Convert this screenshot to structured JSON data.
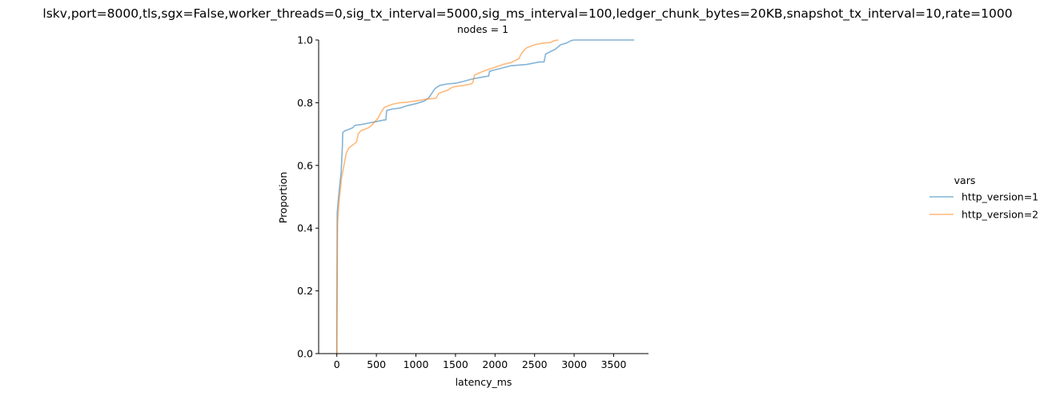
{
  "figure": {
    "suptitle": "lskv,port=8000,tls,sgx=False,worker_threads=0,sig_tx_interval=5000,sig_ms_interval=100,ledger_chunk_bytes=20KB,snapshot_tx_interval=10,rate=1000"
  },
  "chart_data": {
    "type": "line",
    "subtype": "ecdf",
    "title": "nodes = 1",
    "xlabel": "latency_ms",
    "ylabel": "Proportion",
    "xlim": [
      -230,
      3940
    ],
    "ylim": [
      0.0,
      1.0
    ],
    "xticks": [
      0,
      500,
      1000,
      1500,
      2000,
      2500,
      3000,
      3500
    ],
    "xtick_labels": [
      "0",
      "500",
      "1000",
      "1500",
      "2000",
      "2500",
      "3000",
      "3500"
    ],
    "yticks": [
      0.0,
      0.2,
      0.4,
      0.6,
      0.8,
      1.0
    ],
    "ytick_labels": [
      "0.0",
      "0.2",
      "0.4",
      "0.6",
      "0.8",
      "1.0"
    ],
    "grid": false,
    "legend": {
      "title": "vars",
      "position": "right"
    },
    "series": [
      {
        "name": "http_version=1",
        "color": "#1f77b4",
        "opacity": 0.55,
        "points": [
          [
            0,
            0.0
          ],
          [
            0,
            0.05
          ],
          [
            3,
            0.25
          ],
          [
            5,
            0.45
          ],
          [
            15,
            0.48
          ],
          [
            30,
            0.52
          ],
          [
            55,
            0.58
          ],
          [
            70,
            0.66
          ],
          [
            75,
            0.705
          ],
          [
            100,
            0.71
          ],
          [
            150,
            0.715
          ],
          [
            200,
            0.72
          ],
          [
            230,
            0.728
          ],
          [
            300,
            0.73
          ],
          [
            400,
            0.735
          ],
          [
            500,
            0.74
          ],
          [
            600,
            0.745
          ],
          [
            620,
            0.745
          ],
          [
            630,
            0.775
          ],
          [
            700,
            0.78
          ],
          [
            800,
            0.783
          ],
          [
            880,
            0.79
          ],
          [
            1000,
            0.797
          ],
          [
            1100,
            0.805
          ],
          [
            1160,
            0.815
          ],
          [
            1200,
            0.83
          ],
          [
            1240,
            0.845
          ],
          [
            1300,
            0.855
          ],
          [
            1400,
            0.86
          ],
          [
            1500,
            0.862
          ],
          [
            1600,
            0.868
          ],
          [
            1700,
            0.875
          ],
          [
            1800,
            0.88
          ],
          [
            1920,
            0.885
          ],
          [
            1930,
            0.9
          ],
          [
            2000,
            0.905
          ],
          [
            2080,
            0.91
          ],
          [
            2200,
            0.918
          ],
          [
            2400,
            0.922
          ],
          [
            2560,
            0.93
          ],
          [
            2620,
            0.93
          ],
          [
            2640,
            0.955
          ],
          [
            2700,
            0.963
          ],
          [
            2760,
            0.97
          ],
          [
            2830,
            0.985
          ],
          [
            2900,
            0.99
          ],
          [
            2960,
            0.998
          ],
          [
            3000,
            1.0
          ],
          [
            3760,
            1.0
          ]
        ]
      },
      {
        "name": "http_version=2",
        "color": "#ff7f0e",
        "opacity": 0.55,
        "points": [
          [
            0,
            0.0
          ],
          [
            0,
            0.08
          ],
          [
            5,
            0.3
          ],
          [
            10,
            0.42
          ],
          [
            30,
            0.49
          ],
          [
            60,
            0.56
          ],
          [
            90,
            0.6
          ],
          [
            120,
            0.64
          ],
          [
            150,
            0.655
          ],
          [
            200,
            0.665
          ],
          [
            250,
            0.675
          ],
          [
            270,
            0.7
          ],
          [
            300,
            0.71
          ],
          [
            400,
            0.72
          ],
          [
            450,
            0.73
          ],
          [
            480,
            0.74
          ],
          [
            520,
            0.75
          ],
          [
            560,
            0.77
          ],
          [
            600,
            0.785
          ],
          [
            700,
            0.795
          ],
          [
            800,
            0.8
          ],
          [
            900,
            0.802
          ],
          [
            1000,
            0.806
          ],
          [
            1100,
            0.81
          ],
          [
            1160,
            0.812
          ],
          [
            1250,
            0.814
          ],
          [
            1290,
            0.83
          ],
          [
            1320,
            0.833
          ],
          [
            1400,
            0.84
          ],
          [
            1450,
            0.848
          ],
          [
            1500,
            0.852
          ],
          [
            1600,
            0.855
          ],
          [
            1700,
            0.86
          ],
          [
            1720,
            0.865
          ],
          [
            1740,
            0.888
          ],
          [
            1800,
            0.895
          ],
          [
            1900,
            0.905
          ],
          [
            2000,
            0.913
          ],
          [
            2100,
            0.922
          ],
          [
            2200,
            0.928
          ],
          [
            2300,
            0.94
          ],
          [
            2330,
            0.955
          ],
          [
            2360,
            0.965
          ],
          [
            2400,
            0.975
          ],
          [
            2500,
            0.985
          ],
          [
            2600,
            0.99
          ],
          [
            2700,
            0.992
          ],
          [
            2750,
            0.998
          ],
          [
            2800,
            1.0
          ]
        ]
      }
    ]
  }
}
